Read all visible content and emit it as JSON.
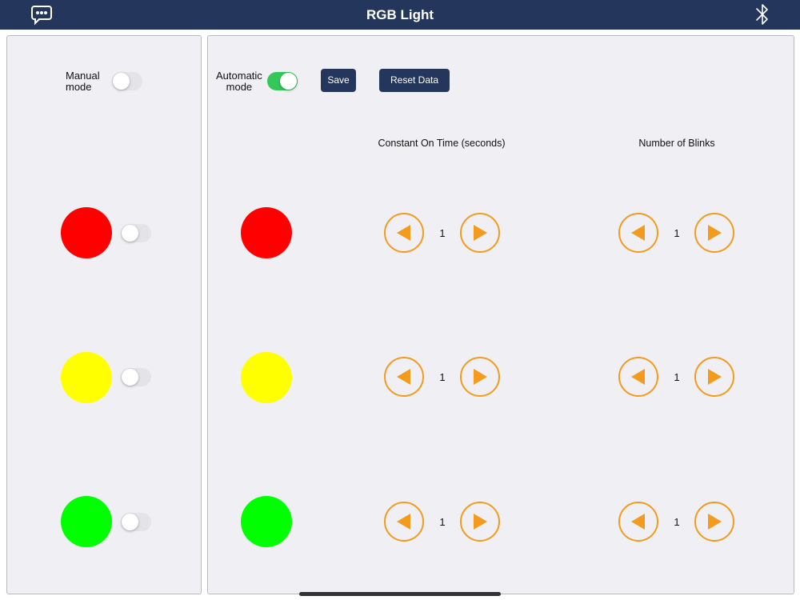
{
  "nav": {
    "title": "RGB Light",
    "left_icon": "chat-bubble-icon",
    "right_icon": "bluetooth-icon"
  },
  "manual": {
    "label_line1": "Manual",
    "label_line2": "mode",
    "toggle_on": false,
    "lights": [
      {
        "color": "#ff0000",
        "toggle_on": false
      },
      {
        "color": "#ffff00",
        "toggle_on": false
      },
      {
        "color": "#00ff00",
        "toggle_on": false
      }
    ]
  },
  "automatic": {
    "label_line1": "Automatic",
    "label_line2": "mode",
    "toggle_on": true,
    "save_label": "Save",
    "reset_label": "Reset Data",
    "col_on_time": "Constant On Time (seconds)",
    "col_blinks": "Number of Blinks",
    "rows": [
      {
        "color": "#ff0000",
        "on_time": "1",
        "blinks": "1"
      },
      {
        "color": "#ffff00",
        "on_time": "1",
        "blinks": "1"
      },
      {
        "color": "#00ff00",
        "on_time": "1",
        "blinks": "1"
      }
    ]
  },
  "colors": {
    "accent": "#24365c",
    "arrow": "#f29b1d",
    "toggle_on": "#34c759"
  }
}
